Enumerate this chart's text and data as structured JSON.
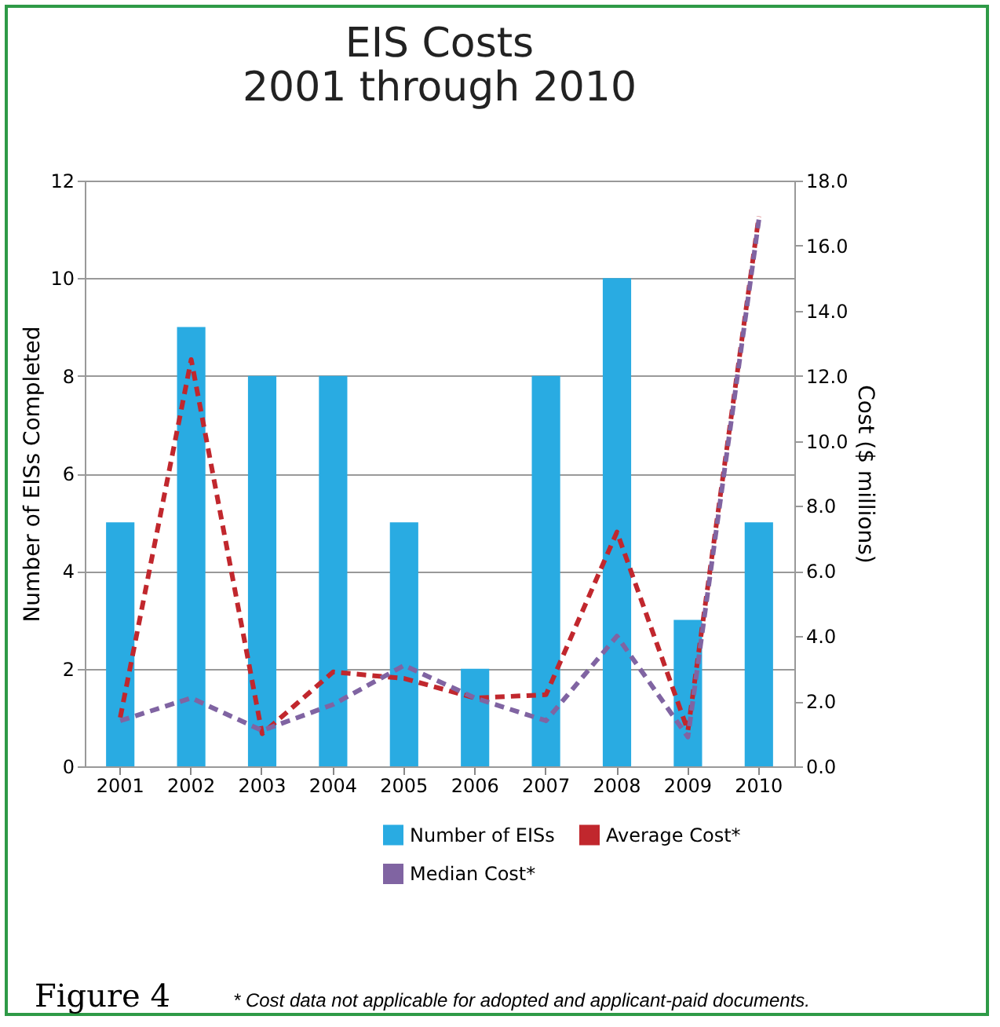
{
  "chart_data": {
    "type": "bar",
    "title": "EIS Costs\n2001 through 2010",
    "ylabel": "Number of EISs Completed",
    "y2label": "Cost ($ millions)",
    "categories": [
      "2001",
      "2002",
      "2003",
      "2004",
      "2005",
      "2006",
      "2007",
      "2008",
      "2009",
      "2010"
    ],
    "series": [
      {
        "name": "Number of EISs",
        "color": "#29abe2",
        "values": [
          5,
          9,
          8,
          8,
          5,
          2,
          8,
          10,
          3,
          5
        ]
      },
      {
        "name": "Average Cost*",
        "type": "line",
        "axis": "y2",
        "line_style": "dashed",
        "color": "#c1272d",
        "values": [
          1.5,
          12.5,
          1.0,
          2.9,
          2.7,
          2.1,
          2.2,
          7.2,
          1.1,
          16.9
        ]
      },
      {
        "name": "Median Cost*",
        "type": "line",
        "axis": "y2",
        "line_style": "dashed",
        "color": "#8064a2",
        "values": [
          1.4,
          2.1,
          1.1,
          1.9,
          3.1,
          2.1,
          1.4,
          4.0,
          0.9,
          16.8
        ]
      }
    ],
    "ylim": [
      0,
      12
    ],
    "yticks": [
      0,
      2,
      4,
      6,
      8,
      10,
      12
    ],
    "y2lim": [
      0,
      18
    ],
    "y2ticks": [
      {
        "value": 0,
        "label": "0.0"
      },
      {
        "value": 2,
        "label": "2.0"
      },
      {
        "value": 4,
        "label": "4.0"
      },
      {
        "value": 6,
        "label": "6.0"
      },
      {
        "value": 8,
        "label": "8.0"
      },
      {
        "value": 10,
        "label": "10.0"
      },
      {
        "value": 12,
        "label": "12.0"
      },
      {
        "value": 14,
        "label": "14.0"
      },
      {
        "value": 16,
        "label": "16.0"
      },
      {
        "value": 18,
        "label": "18.0"
      }
    ],
    "grid": "y",
    "legend": "bottom right",
    "annotations": [
      "Figure 4",
      "* Cost data not applicable for adopted and applicant-paid documents."
    ]
  }
}
